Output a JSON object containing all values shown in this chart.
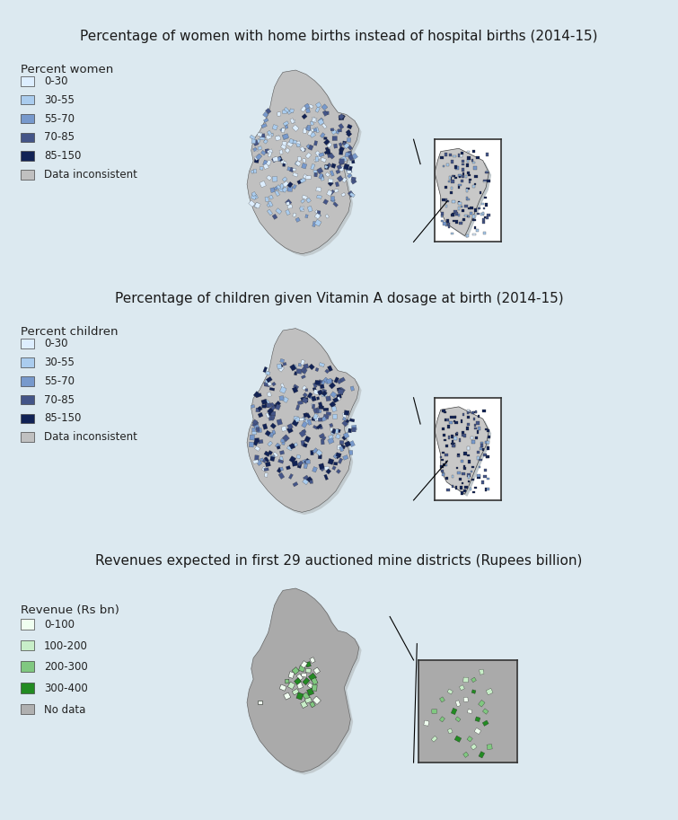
{
  "background_color": "#dce9f0",
  "fig_width": 7.55,
  "fig_height": 9.13,
  "panel1_title": "Percentage of women with home births instead of hospital births (2014-15)",
  "panel2_title": "Percentage of children given Vitamin A dosage at birth (2014-15)",
  "panel3_title": "Revenues expected in first 29 auctioned mine districts (Rupees billion)",
  "legend1_title": "Percent women",
  "legend1_labels": [
    "0-30",
    "30-55",
    "55-70",
    "70-85",
    "85-150",
    "Data inconsistent"
  ],
  "legend1_colors": [
    "#ddeeff",
    "#aaccee",
    "#7799cc",
    "#445588",
    "#112255",
    "#c0c0c0"
  ],
  "legend2_title": "Percent children",
  "legend2_labels": [
    "0-30",
    "30-55",
    "55-70",
    "70-85",
    "85-150",
    "Data inconsistent"
  ],
  "legend2_colors": [
    "#ddeeff",
    "#aaccee",
    "#7799cc",
    "#445588",
    "#112255",
    "#c0c0c0"
  ],
  "legend3_title": "Revenue (Rs bn)",
  "legend3_labels": [
    "0-100",
    "100-200",
    "200-300",
    "300-400",
    "No data"
  ],
  "legend3_colors": [
    "#f0fff0",
    "#c8eec8",
    "#80c880",
    "#228B22",
    "#b0b0b0"
  ],
  "title_fontsize": 11,
  "legend_fontsize": 9
}
